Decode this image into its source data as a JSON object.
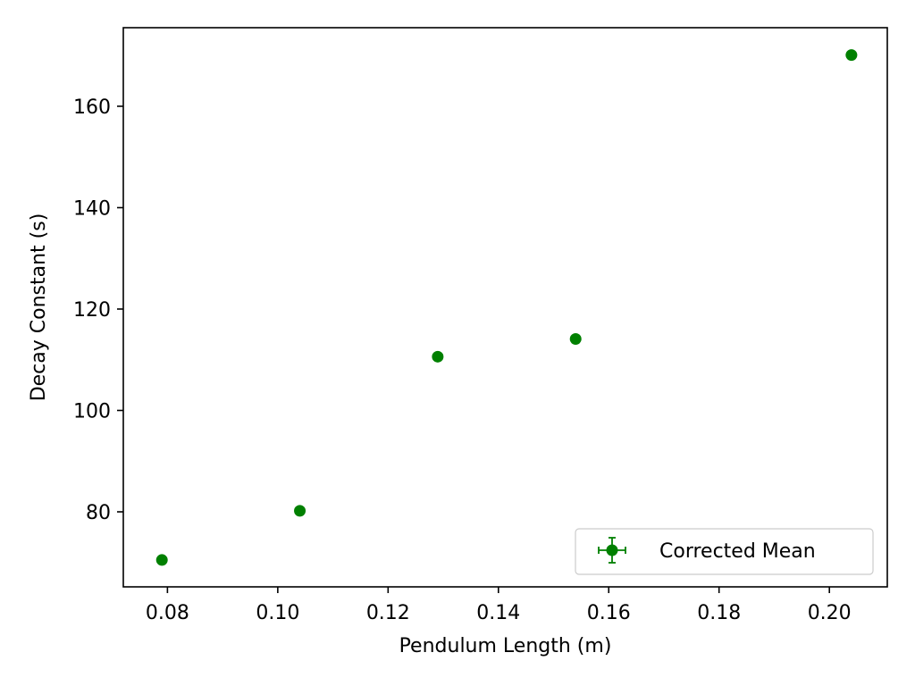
{
  "chart_data": {
    "type": "scatter",
    "title": "",
    "xlabel": "Pendulum Length (m)",
    "ylabel": "Decay Constant (s)",
    "xlim": [
      0.072,
      0.2105
    ],
    "ylim": [
      65.2,
      175.5
    ],
    "xticks": [
      0.08,
      0.1,
      0.12,
      0.14,
      0.16,
      0.18,
      0.2
    ],
    "xtick_labels": [
      "0.08",
      "0.10",
      "0.12",
      "0.14",
      "0.16",
      "0.18",
      "0.20"
    ],
    "yticks": [
      80,
      100,
      120,
      140,
      160
    ],
    "ytick_labels": [
      "80",
      "100",
      "120",
      "140",
      "160"
    ],
    "grid": false,
    "legend_position": "lower-right",
    "series": [
      {
        "name": "Corrected Mean",
        "color": "#008000",
        "marker": "circle",
        "errorbars": true,
        "points": [
          {
            "x": 0.079,
            "y": 70.5
          },
          {
            "x": 0.104,
            "y": 80.2
          },
          {
            "x": 0.129,
            "y": 110.6
          },
          {
            "x": 0.154,
            "y": 114.1
          },
          {
            "x": 0.204,
            "y": 170.1
          }
        ]
      }
    ]
  }
}
